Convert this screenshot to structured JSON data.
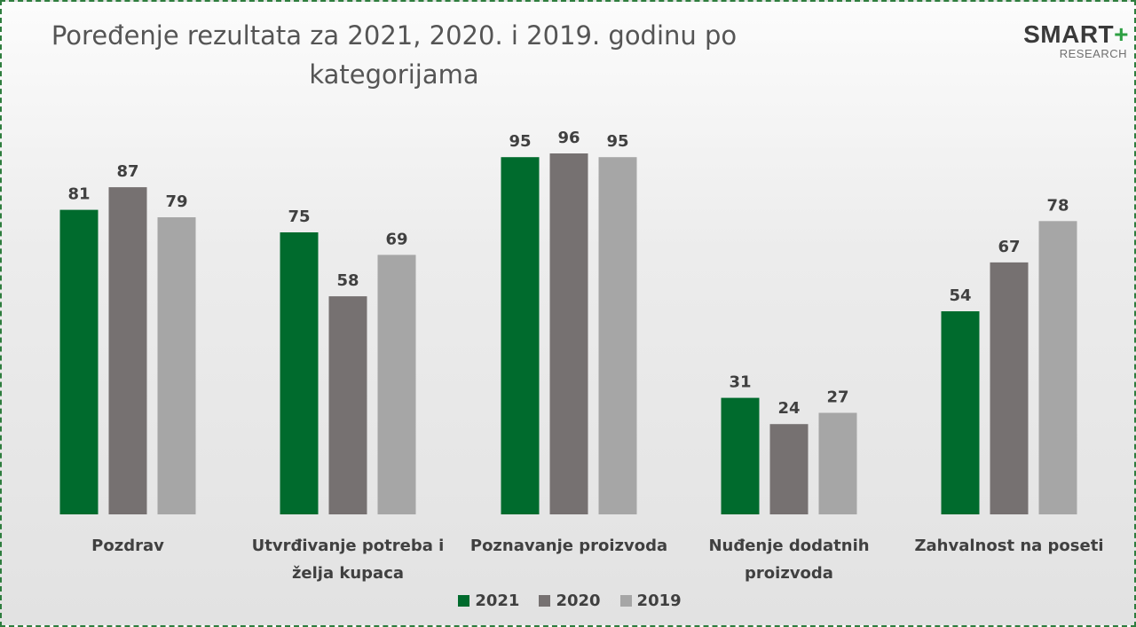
{
  "title_line1": "Poređenje rezultata za 2021, 2020. i 2019. godinu po",
  "title_line2": "kategorijama",
  "logo": {
    "main": "SMART",
    "plus": "+",
    "sub": "RESEARCH"
  },
  "colors": {
    "2021": "#006b2d",
    "2020": "#767171",
    "2019": "#a6a6a6",
    "border": "#2e7d3e"
  },
  "chart_data": {
    "type": "bar",
    "title": "Poređenje rezultata za 2021, 2020. i 2019. godinu po kategorijama",
    "xlabel": "",
    "ylabel": "",
    "ylim": [
      0,
      100
    ],
    "grid": false,
    "legend_position": "bottom",
    "categories": [
      [
        "Pozdrav"
      ],
      [
        "Utvrđivanje potreba i",
        "želja kupaca"
      ],
      [
        "Poznavanje proizvoda"
      ],
      [
        "Nuđenje dodatnih",
        "proizvoda"
      ],
      [
        "Zahvalnost na poseti"
      ]
    ],
    "series": [
      {
        "name": "2021",
        "color": "#006b2d",
        "values": [
          81,
          75,
          95,
          31,
          54
        ]
      },
      {
        "name": "2020",
        "color": "#767171",
        "values": [
          87,
          58,
          96,
          24,
          67
        ]
      },
      {
        "name": "2019",
        "color": "#a6a6a6",
        "values": [
          79,
          69,
          95,
          27,
          78
        ]
      }
    ]
  }
}
